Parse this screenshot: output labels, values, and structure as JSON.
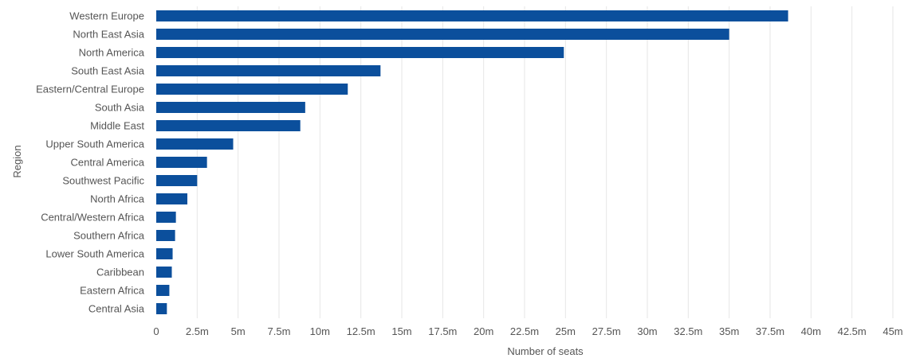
{
  "chart_data": {
    "type": "bar",
    "orientation": "horizontal",
    "categories": [
      "Western Europe",
      "North East Asia",
      "North America",
      "South East Asia",
      "Eastern/Central Europe",
      "South Asia",
      "Middle East",
      "Upper South America",
      "Central America",
      "Southwest Pacific",
      "North Africa",
      "Central/Western Africa",
      "Southern Africa",
      "Lower South America",
      "Caribbean",
      "Eastern Africa",
      "Central Asia"
    ],
    "values": [
      38600000,
      35000000,
      24900000,
      13700000,
      11700000,
      9100000,
      8800000,
      4700000,
      3100000,
      2500000,
      1900000,
      1200000,
      1150000,
      1000000,
      950000,
      800000,
      650000
    ],
    "xlabel": "Number of seats",
    "ylabel": "Region",
    "xlim": [
      0,
      45000000
    ],
    "x_ticks": [
      "0",
      "2.5m",
      "5m",
      "7.5m",
      "10m",
      "12.5m",
      "15m",
      "17.5m",
      "20m",
      "22.5m",
      "25m",
      "27.5m",
      "30m",
      "32.5m",
      "35m",
      "37.5m",
      "40m",
      "42.5m",
      "45m"
    ],
    "grid": "vertical",
    "legend": "none",
    "bar_color": "#0b4f9c"
  }
}
